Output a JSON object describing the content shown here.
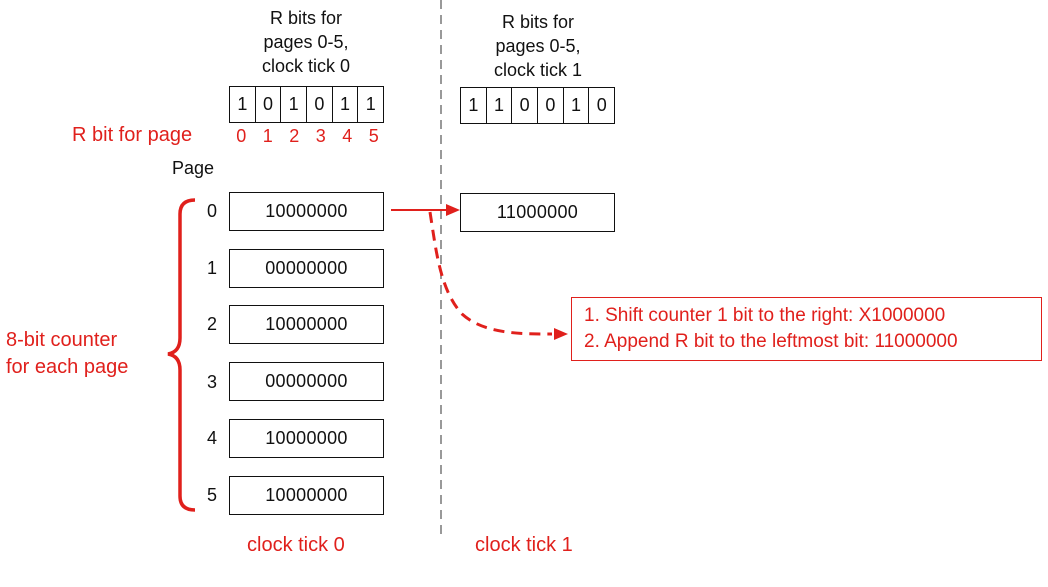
{
  "tick0": {
    "header_lines": [
      "R bits for",
      "pages 0-5,",
      "clock tick 0"
    ],
    "r_bits": [
      "1",
      "0",
      "1",
      "0",
      "1",
      "1"
    ],
    "label": "clock tick 0"
  },
  "tick1": {
    "header_lines": [
      "R bits for",
      "pages 0-5,",
      "clock tick 1"
    ],
    "r_bits": [
      "1",
      "1",
      "0",
      "0",
      "1",
      "0"
    ],
    "label": "clock tick 1",
    "counter_page0": "11000000"
  },
  "r_bit_label": "R bit for page",
  "page_indices": [
    "0",
    "1",
    "2",
    "3",
    "4",
    "5"
  ],
  "page_header": "Page",
  "counters": [
    {
      "page": "0",
      "value": "10000000"
    },
    {
      "page": "1",
      "value": "00000000"
    },
    {
      "page": "2",
      "value": "10000000"
    },
    {
      "page": "3",
      "value": "00000000"
    },
    {
      "page": "4",
      "value": "10000000"
    },
    {
      "page": "5",
      "value": "10000000"
    }
  ],
  "brace_label": [
    "8-bit counter",
    "for each page"
  ],
  "note_lines": [
    "1. Shift counter 1 bit to the right: X1000000",
    "2. Append R bit to the leftmost bit: 11000000"
  ],
  "colors": {
    "accent": "#e0201c",
    "divider": "#999999",
    "ink": "#111111"
  }
}
